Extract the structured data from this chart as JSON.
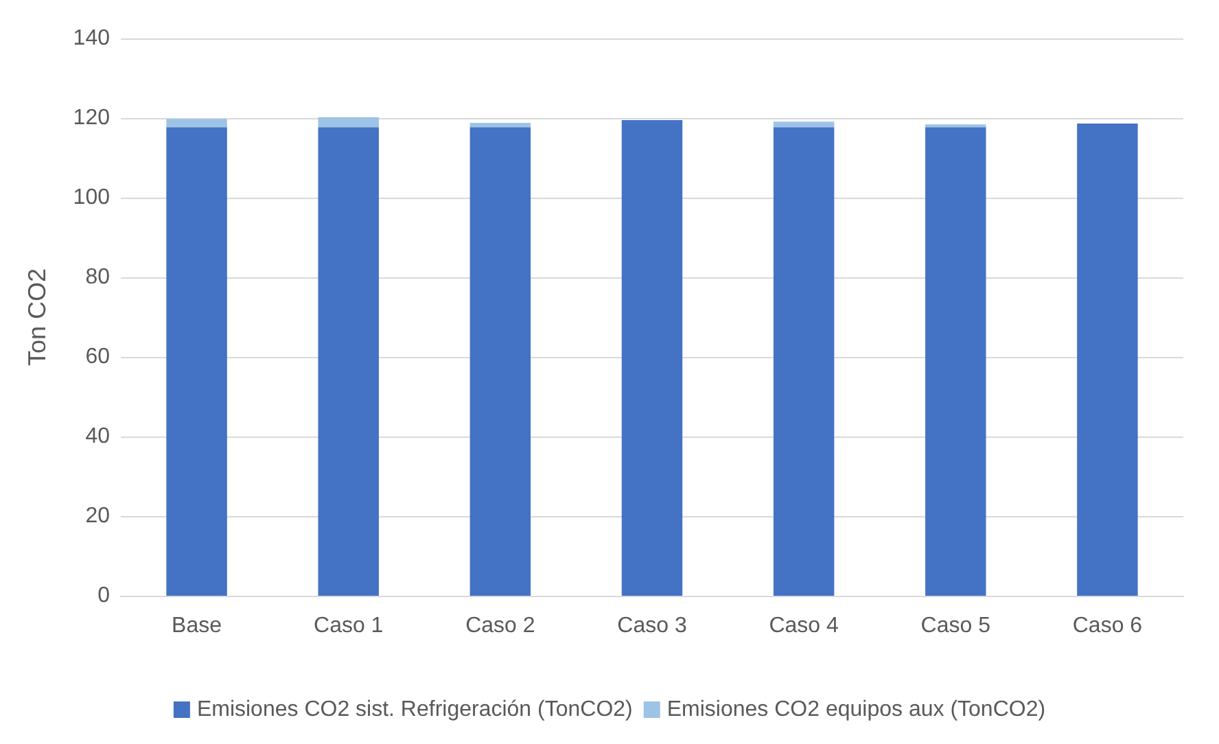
{
  "chart_data": {
    "type": "bar",
    "stacked": true,
    "ylabel": "Ton CO2",
    "categories": [
      "Base",
      "Caso 1",
      "Caso 2",
      "Caso 3",
      "Caso 4",
      "Caso 5",
      "Caso 6"
    ],
    "series": [
      {
        "name": "Emisiones CO2 sist. Refrigeración (TonCO2)",
        "color": "#4472c4",
        "values": [
          117.7,
          117.7,
          117.7,
          119.5,
          117.7,
          117.7,
          118.6
        ]
      },
      {
        "name": "Emisiones CO2 equipos aux (TonCO2)",
        "color": "#9dc3e6",
        "values": [
          2.1,
          2.5,
          1.1,
          0,
          1.4,
          0.7,
          0
        ]
      }
    ],
    "ylim": [
      0,
      140
    ],
    "yticks": [
      0,
      20,
      40,
      60,
      80,
      100,
      120,
      140
    ],
    "grid": "y",
    "legend": "bottom"
  }
}
